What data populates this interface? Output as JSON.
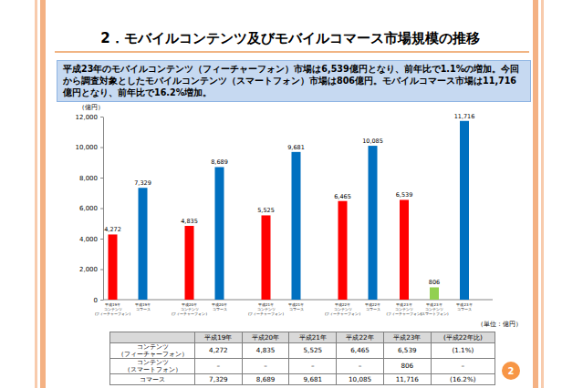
{
  "slide": {
    "title": "2．モバイルコンテンツ及びモバイルコマース市場規模の推移",
    "summary": "平成23年のモバイルコンテンツ（フィーチャーフォン）市場は6,539億円となり、前年比で1.1%の増加。今回から調査対象としたモバイルコンテンツ（スマートフォン）市場は806億円。モバイルコマース市場は11,716億円となり、前年比で16.2%増加。",
    "unit_note": "（単位：億円）",
    "page_number": "2"
  },
  "chart_data": {
    "type": "bar",
    "ylabel": "（億円）",
    "categories": [
      "平成19年",
      "平成20年",
      "平成21年",
      "平成22年",
      "平成23年"
    ],
    "series": [
      {
        "name": "コンテンツ\n(フィーチャーフォン)",
        "color": "#ff0000",
        "values": [
          4272,
          4835,
          5525,
          6465,
          6539
        ],
        "value_labels": [
          "4,272",
          "4,835",
          "5,525",
          "6,465",
          "6,539"
        ]
      },
      {
        "name": "コンテンツ\n(スマートフォン)",
        "color": "#92d050",
        "values": [
          null,
          null,
          null,
          null,
          806
        ],
        "value_labels": [
          null,
          null,
          null,
          null,
          "806"
        ]
      },
      {
        "name": "コマース",
        "color": "#0070c0",
        "values": [
          7329,
          8689,
          9681,
          10085,
          11716
        ],
        "value_labels": [
          "7,329",
          "8,689",
          "9,681",
          "10,085",
          "11,716"
        ]
      }
    ],
    "ylim": [
      0,
      12000
    ],
    "yticks": [
      0,
      {
        "value": 2000,
        "label": "2,000"
      },
      {
        "value": 4000,
        "label": "4,000"
      },
      {
        "value": 6000,
        "label": "6,000"
      },
      {
        "value": 8000,
        "label": "8,000"
      },
      {
        "value": 10000,
        "label": "10,000"
      },
      {
        "value": 12000,
        "label": "12,000"
      }
    ],
    "grid": false,
    "data_labels": true
  },
  "table": {
    "columns": [
      "平成19年",
      "平成20年",
      "平成21年",
      "平成22年",
      "平成23年",
      "(平成22年比)"
    ],
    "rows": [
      {
        "label": "コンテンツ\n（フィーチャーフォン）",
        "cells": [
          "4,272",
          "4,835",
          "5,525",
          "6,465",
          "6,539",
          "(1.1%)"
        ]
      },
      {
        "label": "コンテンツ\n（スマートフォン）",
        "cells": [
          "–",
          "–",
          "–",
          "–",
          "806",
          "–"
        ]
      },
      {
        "label": "コマース",
        "cells": [
          "7,329",
          "8,689",
          "9,681",
          "10,085",
          "11,716",
          "(16.2%)"
        ]
      }
    ]
  }
}
